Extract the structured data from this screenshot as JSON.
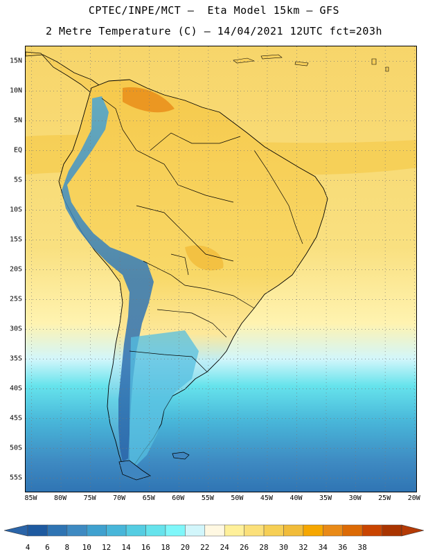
{
  "title": {
    "line1": "CPTEC/INPE/MCT –  Eta Model 15km – GFS",
    "line2": "2 Metre Temperature (C) – 14/04/2021 12UTC fct=203h"
  },
  "map": {
    "region": "South America",
    "lat_labels": [
      "15N",
      "10N",
      "5N",
      "EQ",
      "5S",
      "10S",
      "15S",
      "20S",
      "25S",
      "30S",
      "35S",
      "40S",
      "45S",
      "50S",
      "55S"
    ],
    "lon_labels": [
      "85W",
      "80W",
      "75W",
      "70W",
      "65W",
      "60W",
      "55W",
      "50W",
      "45W",
      "40W",
      "35W",
      "30W",
      "25W",
      "20W"
    ],
    "lat_range": [
      17.5,
      -57.5
    ],
    "lon_range": [
      -86,
      -19.5
    ]
  },
  "colorbar": {
    "labels": [
      "4",
      "6",
      "8",
      "10",
      "12",
      "14",
      "16",
      "18",
      "20",
      "22",
      "24",
      "26",
      "28",
      "30",
      "32",
      "34",
      "36",
      "38"
    ],
    "colors": [
      "#1e5aa0",
      "#2f74b3",
      "#3e8ac2",
      "#3fa1cf",
      "#48b6d9",
      "#55cde2",
      "#66e3ec",
      "#7ff7fa",
      "#d2f6fb",
      "#fff8e2",
      "#fff09a",
      "#fbe07a",
      "#f6cf55",
      "#f1bc3a",
      "#f6a700",
      "#e98a17",
      "#dc6a05",
      "#c94400",
      "#a93400"
    ],
    "under_color": "#2a64a8",
    "over_color": "#b43a06"
  }
}
